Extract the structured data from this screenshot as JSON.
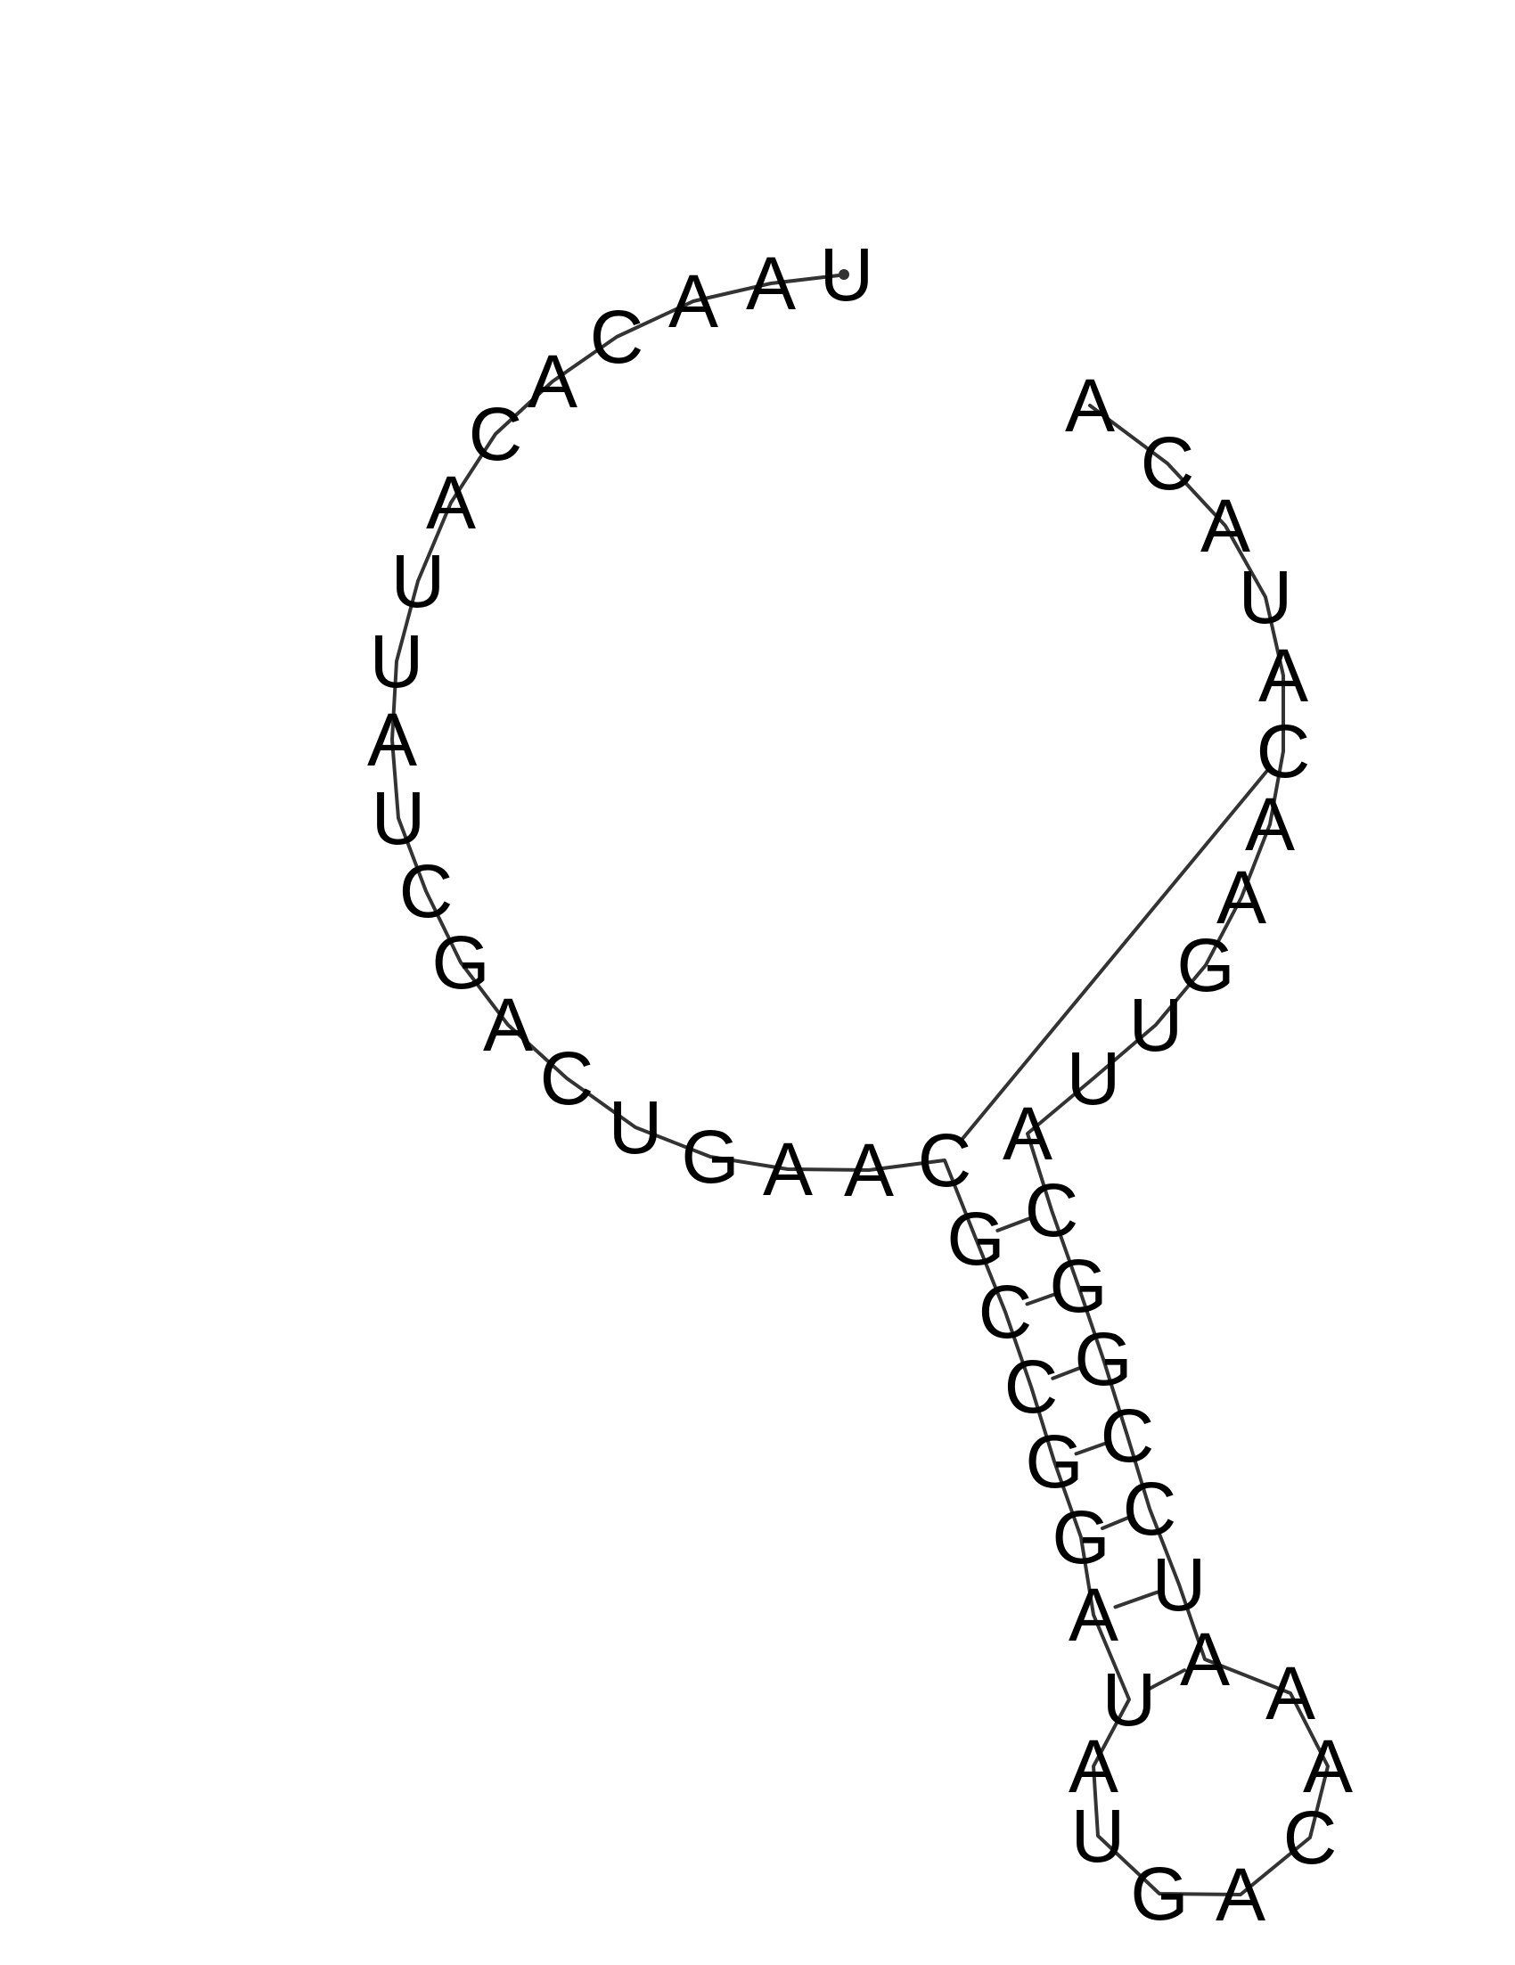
{
  "diagram": {
    "type": "rna-secondary-structure",
    "sequence": [
      "U",
      "A",
      "A",
      "C",
      "A",
      "C",
      "A",
      "U",
      "U",
      "A",
      "U",
      "C",
      "G",
      "A",
      "C",
      "U",
      "G",
      "A",
      "A",
      "C",
      "G",
      "C",
      "C",
      "G",
      "G",
      "A",
      "U",
      "A",
      "U",
      "G",
      "A",
      "C",
      "A",
      "A",
      "A",
      "U",
      "C",
      "C",
      "G",
      "G",
      "C",
      "A",
      "U",
      "U",
      "G",
      "A",
      "A",
      "C",
      "A",
      "U",
      "A",
      "C",
      "A"
    ],
    "pairs": [
      [
        19,
        47
      ],
      [
        20,
        40
      ],
      [
        21,
        39
      ],
      [
        22,
        38
      ],
      [
        23,
        37
      ],
      [
        24,
        36
      ],
      [
        25,
        35
      ],
      [
        26,
        34
      ]
    ],
    "colors": {
      "letters": "#000000",
      "lines": "#333333"
    }
  }
}
